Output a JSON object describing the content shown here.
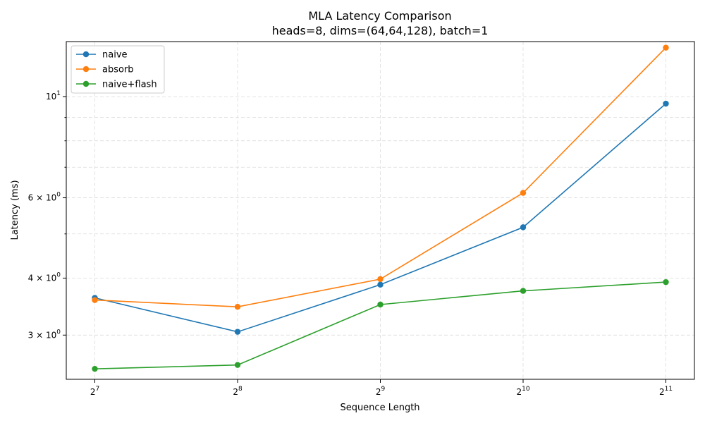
{
  "chart_data": {
    "type": "line",
    "title": "MLA Latency Comparison",
    "subtitle": "heads=8, dims=(64,64,128), batch=1",
    "xlabel": "Sequence Length",
    "ylabel": "Latency (ms)",
    "x_scale": "log2",
    "y_scale": "log",
    "x": [
      128,
      256,
      512,
      1024,
      2048
    ],
    "x_tick_labels": [
      {
        "base": "2",
        "exp": "7"
      },
      {
        "base": "2",
        "exp": "8"
      },
      {
        "base": "2",
        "exp": "9"
      },
      {
        "base": "2",
        "exp": "10"
      },
      {
        "base": "2",
        "exp": "11"
      }
    ],
    "y_ticks": [
      {
        "value": 3,
        "mantissa": "3",
        "base": "10",
        "exp": "0"
      },
      {
        "value": 4,
        "mantissa": "4",
        "base": "10",
        "exp": "0"
      },
      {
        "value": 6,
        "mantissa": "6",
        "base": "10",
        "exp": "0"
      },
      {
        "value": 10,
        "mantissa": "",
        "base": "10",
        "exp": "1"
      }
    ],
    "ylim": [
      2.4,
      13.2
    ],
    "grid": true,
    "legend_position": "top-left",
    "series": [
      {
        "name": "naive",
        "color": "#1f77b4",
        "values": [
          3.62,
          3.05,
          3.87,
          5.17,
          9.65
        ]
      },
      {
        "name": "absorb",
        "color": "#ff7f0e",
        "values": [
          3.58,
          3.46,
          3.98,
          6.15,
          12.8
        ]
      },
      {
        "name": "naive+flash",
        "color": "#2ca02c",
        "values": [
          2.53,
          2.58,
          3.5,
          3.75,
          3.92
        ]
      }
    ]
  }
}
